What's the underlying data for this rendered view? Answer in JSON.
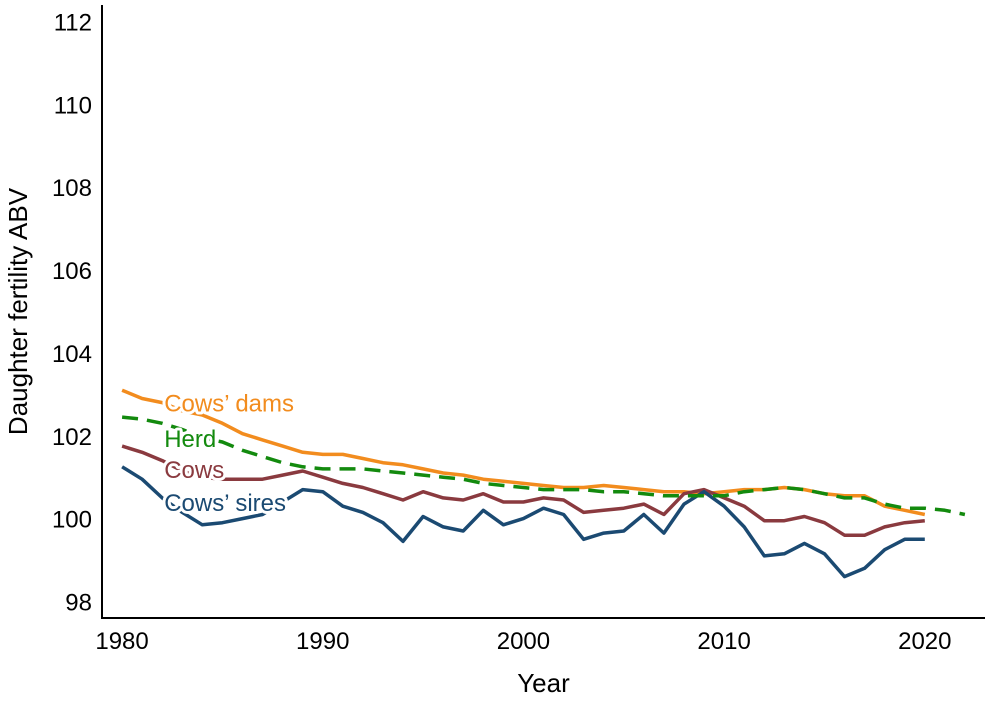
{
  "chart_data": {
    "type": "line",
    "xlabel": "Year",
    "ylabel": "Daughter fertility ABV",
    "xlim": [
      1979,
      2023
    ],
    "ylim": [
      97.6,
      112.4
    ],
    "xticks": [
      1980,
      1990,
      2000,
      2010,
      2020
    ],
    "yticks": [
      98,
      100,
      102,
      104,
      106,
      108,
      110,
      112
    ],
    "grid": false,
    "legend": "inline labels",
    "series": [
      {
        "name": "Cows’ dams",
        "color": "#F28C1E",
        "dash": "solid",
        "label_anchor": [
          1982.1,
          102.8
        ],
        "x": [
          1980,
          1981,
          1982,
          1983,
          1984,
          1985,
          1986,
          1987,
          1988,
          1989,
          1990,
          1991,
          1992,
          1993,
          1994,
          1995,
          1996,
          1997,
          1998,
          1999,
          2000,
          2001,
          2002,
          2003,
          2004,
          2005,
          2006,
          2007,
          2008,
          2009,
          2010,
          2011,
          2012,
          2013,
          2014,
          2015,
          2016,
          2017,
          2018,
          2019,
          2020
        ],
        "values": [
          103.1,
          102.9,
          102.8,
          102.6,
          102.5,
          102.3,
          102.05,
          101.9,
          101.75,
          101.6,
          101.55,
          101.55,
          101.45,
          101.35,
          101.3,
          101.2,
          101.1,
          101.05,
          100.95,
          100.9,
          100.85,
          100.8,
          100.75,
          100.75,
          100.8,
          100.75,
          100.7,
          100.65,
          100.65,
          100.6,
          100.65,
          100.7,
          100.7,
          100.75,
          100.7,
          100.6,
          100.55,
          100.55,
          100.3,
          100.2,
          100.1
        ]
      },
      {
        "name": "Herd",
        "color": "#138A0E",
        "dash": "dashed",
        "label_anchor": [
          1982.1,
          101.95
        ],
        "x": [
          1980,
          1981,
          1982,
          1983,
          1984,
          1985,
          1986,
          1987,
          1988,
          1989,
          1990,
          1991,
          1992,
          1993,
          1994,
          1995,
          1996,
          1997,
          1998,
          1999,
          2000,
          2001,
          2002,
          2003,
          2004,
          2005,
          2006,
          2007,
          2008,
          2009,
          2010,
          2011,
          2012,
          2013,
          2014,
          2015,
          2016,
          2017,
          2018,
          2019,
          2020,
          2021,
          2022
        ],
        "values": [
          102.45,
          102.4,
          102.3,
          102.15,
          101.95,
          101.85,
          101.65,
          101.5,
          101.35,
          101.25,
          101.2,
          101.2,
          101.2,
          101.15,
          101.1,
          101.05,
          101.0,
          100.95,
          100.85,
          100.8,
          100.75,
          100.7,
          100.7,
          100.7,
          100.65,
          100.65,
          100.6,
          100.55,
          100.55,
          100.55,
          100.55,
          100.65,
          100.7,
          100.75,
          100.7,
          100.6,
          100.5,
          100.5,
          100.35,
          100.25,
          100.25,
          100.2,
          100.1
        ]
      },
      {
        "name": "Cows",
        "color": "#8A3A3F",
        "dash": "solid",
        "label_anchor": [
          1982.1,
          101.2
        ],
        "x": [
          1980,
          1981,
          1982,
          1983,
          1984,
          1985,
          1986,
          1987,
          1988,
          1989,
          1990,
          1991,
          1992,
          1993,
          1994,
          1995,
          1996,
          1997,
          1998,
          1999,
          2000,
          2001,
          2002,
          2003,
          2004,
          2005,
          2006,
          2007,
          2008,
          2009,
          2010,
          2011,
          2012,
          2013,
          2014,
          2015,
          2016,
          2017,
          2018,
          2019,
          2020
        ],
        "values": [
          101.75,
          101.6,
          101.4,
          101.15,
          101.0,
          100.95,
          100.95,
          100.95,
          101.05,
          101.15,
          101.0,
          100.85,
          100.75,
          100.6,
          100.45,
          100.65,
          100.5,
          100.45,
          100.6,
          100.4,
          100.4,
          100.5,
          100.45,
          100.15,
          100.2,
          100.25,
          100.35,
          100.1,
          100.6,
          100.7,
          100.5,
          100.3,
          99.95,
          99.95,
          100.05,
          99.9,
          99.6,
          99.6,
          99.8,
          99.9,
          99.95
        ]
      },
      {
        "name": "Cows’ sires",
        "color": "#1B4A72",
        "dash": "solid",
        "label_anchor": [
          1982.1,
          100.4
        ],
        "x": [
          1980,
          1981,
          1982,
          1983,
          1984,
          1985,
          1986,
          1987,
          1988,
          1989,
          1990,
          1991,
          1992,
          1993,
          1994,
          1995,
          1996,
          1997,
          1998,
          1999,
          2000,
          2001,
          2002,
          2003,
          2004,
          2005,
          2006,
          2007,
          2008,
          2009,
          2010,
          2011,
          2012,
          2013,
          2014,
          2015,
          2016,
          2017,
          2018,
          2019,
          2020
        ],
        "values": [
          101.25,
          100.95,
          100.5,
          100.15,
          99.85,
          99.9,
          100.0,
          100.1,
          100.4,
          100.7,
          100.65,
          100.3,
          100.15,
          99.9,
          99.45,
          100.05,
          99.8,
          99.7,
          100.2,
          99.85,
          100.0,
          100.25,
          100.1,
          99.5,
          99.65,
          99.7,
          100.1,
          99.65,
          100.35,
          100.65,
          100.3,
          99.8,
          99.1,
          99.15,
          99.4,
          99.15,
          98.6,
          98.8,
          99.25,
          99.5,
          99.5
        ]
      }
    ]
  }
}
